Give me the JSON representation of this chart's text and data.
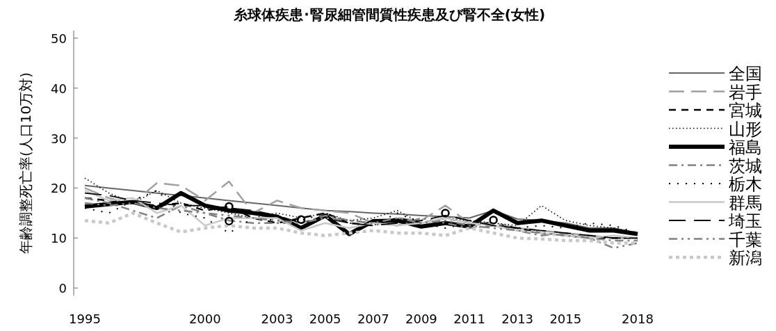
{
  "chart_data": {
    "type": "line",
    "title": "糸球体疾患･腎尿細管間質性疾患及び腎不全(女性)",
    "ylabel": "年齢調整死亡率(人口10万対)",
    "x": [
      1995,
      1996,
      1997,
      1998,
      1999,
      2000,
      2001,
      2002,
      2003,
      2004,
      2005,
      2006,
      2007,
      2008,
      2009,
      2010,
      2011,
      2012,
      2013,
      2014,
      2015,
      2016,
      2017,
      2018
    ],
    "xlim": [
      1995,
      2018
    ],
    "xticks": [
      1995,
      2000,
      2003,
      2005,
      2007,
      2009,
      2011,
      2013,
      2015,
      2018
    ],
    "ylim": [
      -1.5,
      51.5
    ],
    "yticks": [
      0,
      10,
      20,
      30,
      40,
      50
    ],
    "grid": false,
    "legend": "right",
    "series": [
      {
        "name": "全国",
        "color": "#666666",
        "line_style": "solid",
        "values": [
          20.5,
          20,
          19.5,
          19,
          18.5,
          18,
          17.5,
          17,
          16.5,
          16,
          15.5,
          15.3,
          15,
          14.8,
          14.5,
          14.3,
          14,
          15.5,
          13.8,
          13.5,
          13,
          12,
          12,
          11
        ]
      },
      {
        "name": "岩手",
        "color": "#a0a0a0",
        "line_style": "dashed",
        "values": [
          20,
          18,
          17,
          21,
          20.5,
          17.5,
          21.3,
          15,
          17.5,
          16,
          15.5,
          15,
          13,
          14,
          13.5,
          16.5,
          13,
          13,
          12,
          11.5,
          11,
          10.5,
          10,
          10
        ]
      },
      {
        "name": "宮城",
        "color": "#000000",
        "line_style": "dashed",
        "values": [
          18,
          17.5,
          17,
          16.5,
          17,
          15.5,
          16.3,
          14,
          13,
          14,
          15,
          13,
          12.5,
          14,
          13,
          14,
          13,
          12.5,
          12,
          11,
          10.5,
          10,
          10,
          10
        ]
      },
      {
        "name": "山形",
        "color": "#000000",
        "line_style": "dotted",
        "values": [
          22,
          19,
          17,
          19.5,
          17,
          16,
          15,
          14,
          15,
          14,
          15,
          13.5,
          14,
          15.5,
          13,
          14,
          13.5,
          13,
          12.5,
          16.5,
          13.5,
          12.5,
          12,
          11
        ]
      },
      {
        "name": "福島",
        "color": "#000000",
        "line_style": "solid",
        "values": [
          16.3,
          16.8,
          17.2,
          16,
          19,
          16.5,
          15.5,
          15,
          14.3,
          12,
          14.5,
          10.8,
          13.4,
          13.5,
          12.3,
          13,
          12.3,
          15.5,
          13,
          13.5,
          12.5,
          11.5,
          11.5,
          10.8
        ]
      },
      {
        "name": "茨城",
        "color": "#808080",
        "line_style": "dashed",
        "values": [
          18,
          17,
          15.5,
          14,
          16.5,
          15,
          13.5,
          13,
          13,
          13,
          14.5,
          13.5,
          13,
          12.5,
          14,
          13,
          12,
          12.5,
          11.5,
          10.5,
          11,
          10,
          9.5,
          9.5
        ]
      },
      {
        "name": "栃木",
        "color": "#000000",
        "line_style": "dotted",
        "values": [
          16,
          15,
          17.5,
          19.5,
          15,
          14,
          11,
          14,
          13.5,
          13.5,
          15,
          13,
          12.5,
          15,
          13,
          12,
          13,
          13,
          12,
          12.5,
          12,
          13,
          12.5,
          11
        ]
      },
      {
        "name": "群馬",
        "color": "#c8c8c8",
        "line_style": "solid",
        "values": [
          19.5,
          17.5,
          18,
          15,
          16.5,
          12.5,
          14,
          14,
          14,
          11.5,
          13,
          12,
          13,
          12.5,
          13,
          14,
          13,
          12.5,
          11.5,
          11,
          10.5,
          10,
          10.5,
          10
        ]
      },
      {
        "name": "埼玉",
        "color": "#000000",
        "line_style": "dashed",
        "values": [
          19,
          18.5,
          17.5,
          17,
          16.5,
          16.5,
          16,
          15.5,
          14.5,
          13,
          14,
          13,
          12.5,
          13,
          13.5,
          14.5,
          13.5,
          12.5,
          12,
          11.5,
          11,
          10.5,
          10,
          10
        ]
      },
      {
        "name": "千葉",
        "color": "#808080",
        "line_style": "dashed",
        "values": [
          17,
          16.5,
          17,
          16,
          15.5,
          15,
          14.5,
          14,
          13.5,
          13,
          14,
          13.5,
          13,
          14,
          13,
          13.5,
          12.5,
          12,
          11.5,
          11,
          10.5,
          10,
          8,
          9
        ]
      },
      {
        "name": "新潟",
        "color": "#c8c8c8",
        "line_style": "dotted",
        "values": [
          13.5,
          13,
          15,
          13,
          11.2,
          12,
          12.5,
          12,
          12,
          11,
          10.5,
          11,
          11.5,
          11,
          11,
          10.5,
          12,
          11,
          10,
          9.8,
          9.5,
          9.5,
          9,
          9
        ]
      },
      {
        "type": "scatter",
        "marker": "circle",
        "color": "#000000",
        "x": [
          2001,
          2001,
          2004,
          2010,
          2012
        ],
        "values": [
          16.3,
          13.4,
          13.7,
          15,
          13.6
        ]
      }
    ]
  }
}
